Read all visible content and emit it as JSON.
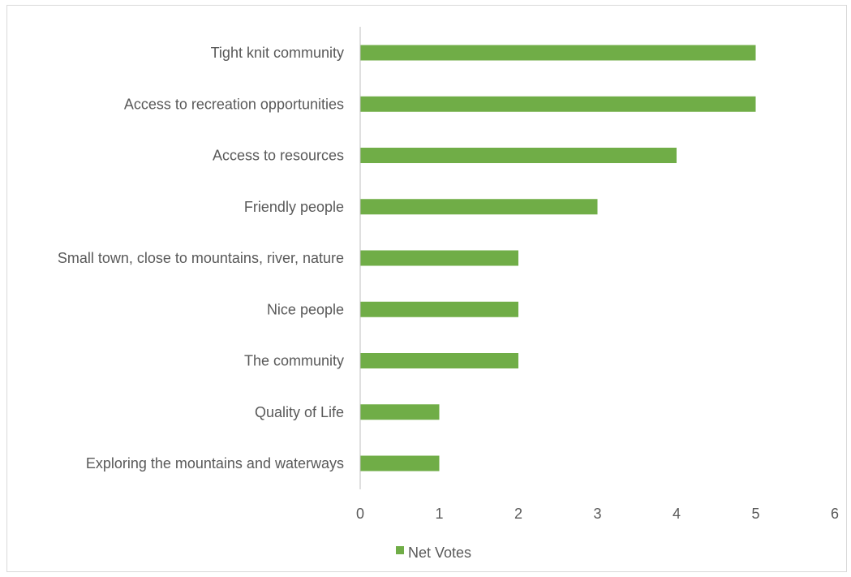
{
  "chart_data": {
    "type": "bar",
    "orientation": "horizontal",
    "categories": [
      "Tight knit community",
      "Access to recreation opportunities",
      "Access to resources",
      "Friendly people",
      "Small town, close to mountains, river, nature",
      "Nice people",
      "The community",
      "Quality of Life",
      "Exploring the mountains and waterways"
    ],
    "series": [
      {
        "name": "Net Votes",
        "values": [
          5,
          5,
          4,
          3,
          2,
          2,
          2,
          1,
          1
        ],
        "color": "#70ad47"
      }
    ],
    "xlim": [
      0,
      6
    ],
    "xticks": [
      "0",
      "1",
      "2",
      "3",
      "4",
      "5",
      "6"
    ],
    "grid": false,
    "legend": "bottom-center"
  }
}
